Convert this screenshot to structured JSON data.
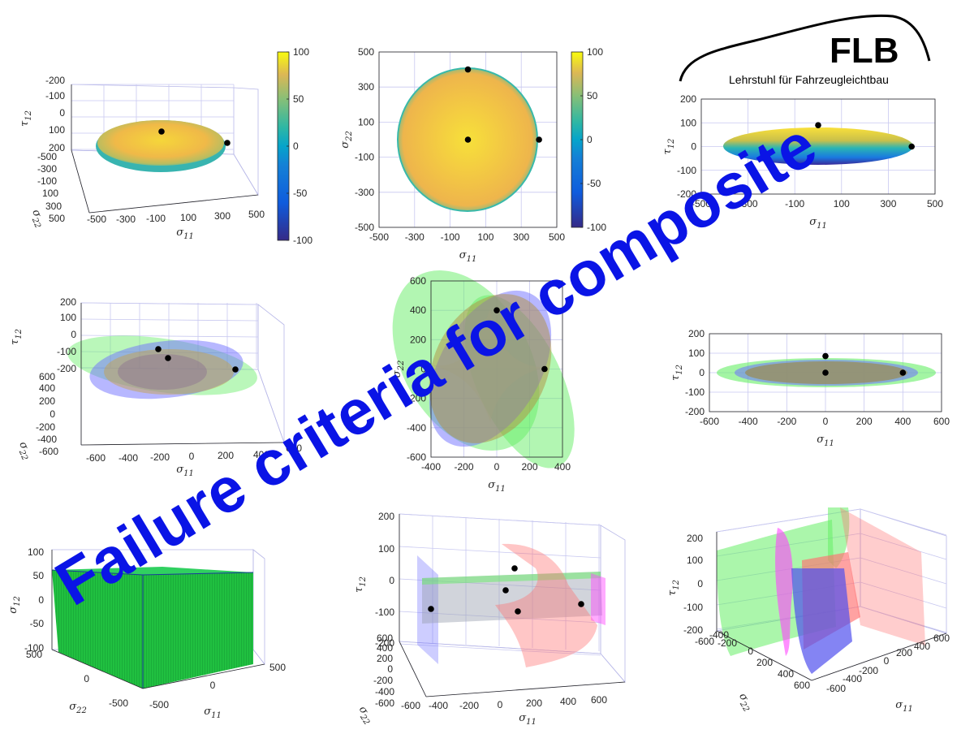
{
  "banner": "Failure criteria for composite",
  "logo": {
    "text": "FLB",
    "subtitle": "Lehrstuhl für Fahrzeugleichtbau"
  },
  "colors": {
    "banner": "#0a14e6",
    "points": "#000000",
    "green": "#66ee66",
    "blue": "#7070ff",
    "red": "#ff7070",
    "magenta": "#ff44ff"
  },
  "colorbar": {
    "ticks": [
      "100",
      "50",
      "0",
      "-50",
      "-100"
    ],
    "colormap": "parula"
  },
  "chart_data": [
    {
      "id": "p1",
      "type": "surface3d",
      "view": "oblique",
      "xlabel": "σ 11",
      "ylabel": "σ 22",
      "zlabel": "τ 12",
      "xticks": [
        "-500",
        "-300",
        "-100",
        "100",
        "300",
        "500"
      ],
      "yticks": [
        "-500",
        "-300",
        "-100",
        "100",
        "300",
        "500"
      ],
      "zticks": [
        "-200",
        "-100",
        "0",
        "100",
        "200"
      ],
      "xlim": [
        -500,
        500
      ],
      "ylim": [
        -500,
        500
      ],
      "zlim": [
        -200,
        200
      ],
      "points": [
        {
          "x": 0,
          "y": 0,
          "z": 100
        },
        {
          "x": 400,
          "y": 0,
          "z": 0
        }
      ],
      "colorbar": true
    },
    {
      "id": "p2",
      "type": "surface2d",
      "view": "top",
      "xlabel": "σ 11",
      "ylabel": "σ 22",
      "xticks": [
        "-500",
        "-300",
        "-100",
        "100",
        "300",
        "500"
      ],
      "yticks": [
        "500",
        "300",
        "100",
        "-100",
        "-300",
        "-500"
      ],
      "xlim": [
        -500,
        500
      ],
      "ylim": [
        -500,
        500
      ],
      "points": [
        {
          "x": 0,
          "y": 400
        },
        {
          "x": 0,
          "y": 0
        },
        {
          "x": 400,
          "y": 0
        }
      ],
      "colorbar": true
    },
    {
      "id": "p3",
      "type": "surface2d",
      "view": "front",
      "xlabel": "σ 11",
      "ylabel": "τ 12",
      "xticks": [
        "-500",
        "-300",
        "-100",
        "100",
        "300",
        "500"
      ],
      "yticks": [
        "200",
        "100",
        "0",
        "-100",
        "-200"
      ],
      "xlim": [
        -500,
        500
      ],
      "ylim": [
        -200,
        200
      ],
      "points": [
        {
          "x": 0,
          "y": 90
        },
        {
          "x": 400,
          "y": 0
        }
      ]
    },
    {
      "id": "p4",
      "type": "surface3d",
      "view": "oblique",
      "xlabel": "σ 11",
      "ylabel": "σ 22",
      "zlabel": "τ 12",
      "xticks": [
        "-600",
        "-400",
        "-200",
        "0",
        "200",
        "400",
        "600"
      ],
      "yticks": [
        "-600",
        "-400",
        "-200",
        "0",
        "200",
        "400",
        "600"
      ],
      "zticks": [
        "-200",
        "-100",
        "0",
        "100",
        "200"
      ],
      "xlim": [
        -600,
        600
      ],
      "ylim": [
        -600,
        600
      ],
      "zlim": [
        -200,
        200
      ],
      "series": [
        "green",
        "blue",
        "red"
      ],
      "points": [
        {
          "x": 0,
          "y": 400,
          "z": 100
        },
        {
          "x": 0,
          "y": 0,
          "z": 80
        },
        {
          "x": 400,
          "y": 0,
          "z": 0
        }
      ]
    },
    {
      "id": "p5",
      "type": "surface2d",
      "view": "top",
      "xlabel": "σ 11",
      "ylabel": "σ 22",
      "xticks": [
        "-400",
        "-200",
        "0",
        "200",
        "400"
      ],
      "yticks": [
        "600",
        "400",
        "200",
        "0",
        "-200",
        "-400",
        "-600"
      ],
      "xlim": [
        -550,
        550
      ],
      "ylim": [
        -600,
        600
      ],
      "series": [
        "green",
        "blue",
        "red"
      ],
      "points": [
        {
          "x": 0,
          "y": 400
        },
        {
          "x": 400,
          "y": 0
        }
      ]
    },
    {
      "id": "p6",
      "type": "surface2d",
      "view": "front",
      "xlabel": "σ 11",
      "ylabel": "τ 12",
      "xticks": [
        "-600",
        "-400",
        "-200",
        "0",
        "200",
        "400",
        "600"
      ],
      "yticks": [
        "200",
        "100",
        "0",
        "-100",
        "-200"
      ],
      "xlim": [
        -600,
        600
      ],
      "ylim": [
        -200,
        200
      ],
      "series": [
        "green",
        "blue",
        "red"
      ],
      "points": [
        {
          "x": 0,
          "y": 85
        },
        {
          "x": 0,
          "y": 0
        },
        {
          "x": 400,
          "y": 0
        }
      ]
    },
    {
      "id": "p7",
      "type": "surface3d",
      "view": "oblique",
      "xlabel": "σ 11",
      "ylabel": "σ 22",
      "zlabel": "σ 12",
      "xticks": [
        "-500",
        "0",
        "500"
      ],
      "yticks": [
        "-500",
        "0",
        "500"
      ],
      "zticks": [
        "-100",
        "-50",
        "0",
        "50",
        "100"
      ],
      "xlim": [
        -500,
        500
      ],
      "ylim": [
        -500,
        500
      ],
      "zlim": [
        -100,
        100
      ],
      "series": [
        "green-box"
      ]
    },
    {
      "id": "p8",
      "type": "surface3d",
      "view": "oblique",
      "xlabel": "σ 11",
      "ylabel": "σ 22",
      "zlabel": "τ 12",
      "xticks": [
        "-600",
        "-400",
        "-200",
        "0",
        "200",
        "400",
        "600"
      ],
      "yticks": [
        "-600",
        "-400",
        "-200",
        "0",
        "200",
        "400",
        "600"
      ],
      "zticks": [
        "-200",
        "-100",
        "0",
        "100",
        "200"
      ],
      "xlim": [
        -600,
        600
      ],
      "ylim": [
        -600,
        600
      ],
      "zlim": [
        -200,
        200
      ],
      "series": [
        "blue",
        "green",
        "red",
        "magenta"
      ],
      "points": [
        {
          "x": -600,
          "y": 0,
          "z": -100
        },
        {
          "x": -200,
          "y": 0,
          "z": 0
        },
        {
          "x": -100,
          "y": 0,
          "z": 50
        },
        {
          "x": -100,
          "y": 0,
          "z": -100
        },
        {
          "x": 400,
          "y": 0,
          "z": -50
        }
      ]
    },
    {
      "id": "p9",
      "type": "surface3d",
      "view": "oblique",
      "xlabel": "σ 11",
      "ylabel": "σ 22",
      "zlabel": "τ 12",
      "xticks": [
        "-600",
        "-400",
        "-200",
        "0",
        "200",
        "400",
        "600"
      ],
      "yticks": [
        "-600",
        "-400",
        "-200",
        "0",
        "200",
        "400",
        "600"
      ],
      "zticks": [
        "-200",
        "-100",
        "0",
        "100",
        "200"
      ],
      "xlim": [
        -600,
        600
      ],
      "ylim": [
        -600,
        600
      ],
      "zlim": [
        -200,
        200
      ],
      "series": [
        "green",
        "red",
        "magenta",
        "blue"
      ]
    }
  ]
}
